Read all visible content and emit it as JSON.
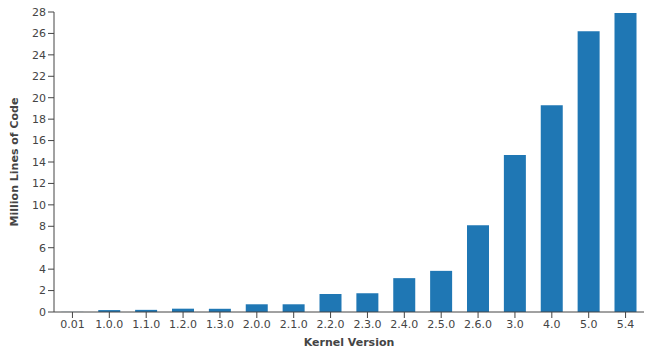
{
  "chart_data": {
    "type": "bar",
    "x_label": "Kernel Version",
    "y_label": "Million Lines of Code",
    "categories": [
      "0.01",
      "1.0.0",
      "1.1.0",
      "1.2.0",
      "1.3.0",
      "2.0.0",
      "2.1.0",
      "2.2.0",
      "2.3.0",
      "2.4.0",
      "2.5.0",
      "2.6.0",
      "3.0",
      "4.0",
      "5.0",
      "5.4"
    ],
    "values": [
      0.01,
      0.18,
      0.2,
      0.31,
      0.3,
      0.72,
      0.72,
      1.68,
      1.75,
      3.16,
      3.84,
      8.1,
      14.65,
      19.3,
      26.2,
      27.9
    ],
    "color": "#1f77b4",
    "ylim": [
      0,
      28
    ],
    "yticks": [
      0,
      2,
      4,
      6,
      8,
      10,
      12,
      14,
      16,
      18,
      20,
      22,
      24,
      26,
      28
    ],
    "grid": false
  }
}
